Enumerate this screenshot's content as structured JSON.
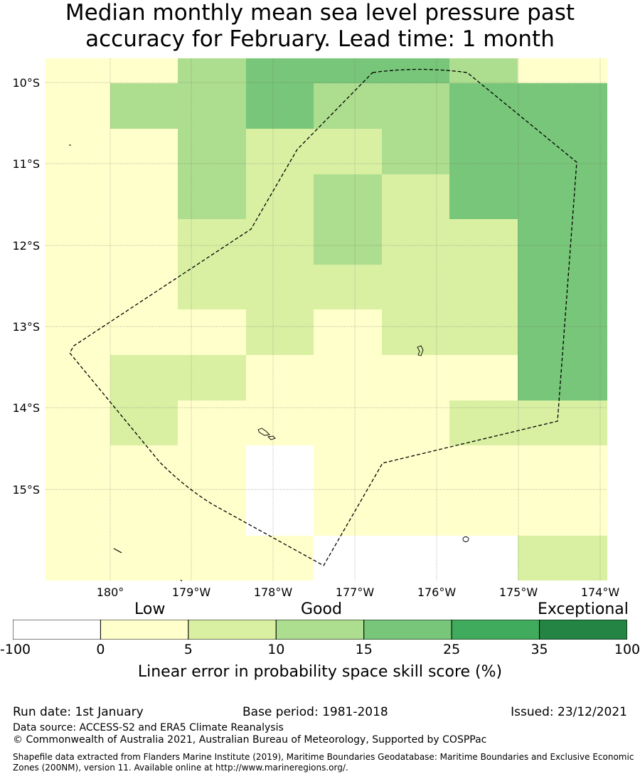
{
  "title": {
    "line1": "Median monthly mean sea level pressure past",
    "line2": "accuracy for February. Lead time: 1 month"
  },
  "map": {
    "lat_labels": [
      "10°S",
      "11°S",
      "12°S",
      "13°S",
      "14°S",
      "15°S"
    ],
    "lon_labels": [
      "180°",
      "179°W",
      "178°W",
      "177°W",
      "176°W",
      "175°W",
      "174°W"
    ],
    "grid": {
      "bins": [
        -100,
        0,
        5,
        10,
        15,
        25,
        35,
        100
      ],
      "colors": [
        "#ffffff",
        "#ffffcc",
        "#d9f0a3",
        "#addd8e",
        "#78c679",
        "#41ab5d",
        "#238443"
      ],
      "cols": 8,
      "rows": 12,
      "cells": [
        [
          3,
          3,
          13,
          17,
          17,
          17,
          12,
          4
        ],
        [
          3,
          12,
          12,
          18,
          12,
          12,
          18,
          18
        ],
        [
          3,
          3,
          12,
          8,
          8,
          12,
          18,
          18
        ],
        [
          3,
          3,
          12,
          8,
          12,
          8,
          18,
          18
        ],
        [
          3,
          3,
          8,
          8,
          12,
          8,
          8,
          18
        ],
        [
          3,
          3,
          8,
          8,
          8,
          8,
          8,
          18
        ],
        [
          3,
          3,
          3,
          8,
          2,
          8,
          8,
          18
        ],
        [
          3,
          8,
          8,
          3,
          4,
          2,
          4,
          18
        ],
        [
          3,
          8,
          3,
          2,
          2,
          2,
          8,
          8
        ],
        [
          3,
          3,
          2,
          -5,
          2,
          2,
          2,
          3
        ],
        [
          3,
          3,
          2,
          -5,
          3,
          3,
          3,
          3
        ],
        [
          2,
          2,
          2,
          3,
          -5,
          -5,
          -5,
          8
        ]
      ]
    }
  },
  "colorbar": {
    "categories": [
      "Low",
      "Good",
      "Exceptional"
    ],
    "ticks": [
      "-100",
      "0",
      "5",
      "10",
      "15",
      "25",
      "35",
      "100"
    ],
    "label": "Linear error in probability space skill score (%)"
  },
  "footer": {
    "run_date": "Run date: 1st January",
    "base_period": "Base period: 1981-2018",
    "issued": "Issued: 23/12/2021",
    "data_source": "Data source: ACCESS-S2 and ERA5 Climate Reanalysis",
    "copyright": "© Commonwealth of Australia 2021, Australian Bureau of Meteorology, Supported by COSPPac",
    "shapefile": "Shapefile data extracted from Flanders Marine Institute (2019), Maritime Boundaries Geodatabase: Maritime Boundaries and Exclusive Economic Zones (200NM), version 11. Available online at http://www.marineregions.org/."
  }
}
